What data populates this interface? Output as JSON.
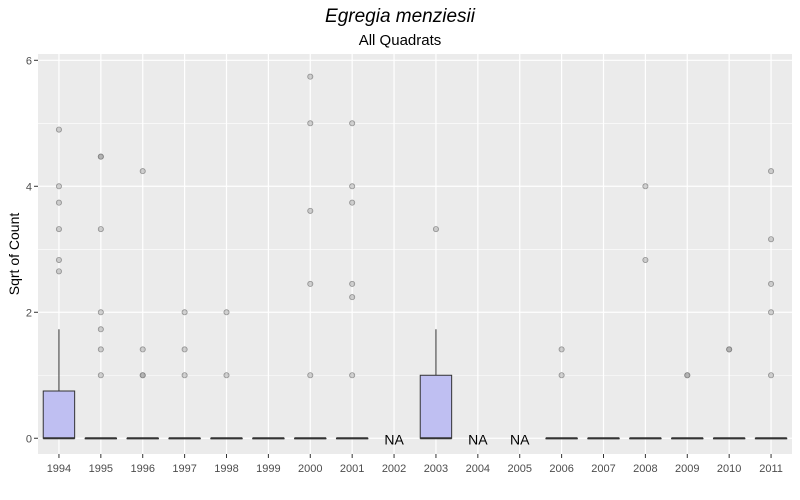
{
  "chart_data": {
    "type": "boxplot",
    "title": "Egregia menziesii",
    "subtitle": "All Quadrats",
    "xlabel": "",
    "ylabel": "Sqrt of Count",
    "ylim": [
      -0.25,
      6.1
    ],
    "yticks": [
      0,
      2,
      4,
      6
    ],
    "grid": true,
    "legend": "none",
    "colors": {
      "panel": "#ebebeb",
      "grid": "#ffffff",
      "box_fill": "#bfbff2",
      "box_line": "#333333",
      "outlier": "#808080"
    },
    "categories": [
      "1994",
      "1995",
      "1996",
      "1997",
      "1998",
      "1999",
      "2000",
      "2001",
      "2002",
      "2003",
      "2004",
      "2005",
      "2006",
      "2007",
      "2008",
      "2009",
      "2010",
      "2011"
    ],
    "na_label": "NA",
    "boxes": [
      {
        "year": "1994",
        "min": 0,
        "q1": 0,
        "median": 0,
        "q3": 0.75,
        "max": 1.73,
        "outliers": [
          2.65,
          2.83,
          3.32,
          3.74,
          4.0,
          4.9
        ]
      },
      {
        "year": "1995",
        "min": 0,
        "q1": 0,
        "median": 0,
        "q3": 0,
        "max": 0,
        "outliers": [
          1.0,
          1.41,
          1.73,
          2.0,
          3.32,
          4.47,
          4.47
        ]
      },
      {
        "year": "1996",
        "min": 0,
        "q1": 0,
        "median": 0,
        "q3": 0,
        "max": 0,
        "outliers": [
          1.0,
          1.0,
          1.41,
          4.24
        ]
      },
      {
        "year": "1997",
        "min": 0,
        "q1": 0,
        "median": 0,
        "q3": 0,
        "max": 0,
        "outliers": [
          1.0,
          1.41,
          2.0
        ]
      },
      {
        "year": "1998",
        "min": 0,
        "q1": 0,
        "median": 0,
        "q3": 0,
        "max": 0,
        "outliers": [
          1.0,
          2.0
        ]
      },
      {
        "year": "1999",
        "min": 0,
        "q1": 0,
        "median": 0,
        "q3": 0,
        "max": 0,
        "outliers": []
      },
      {
        "year": "2000",
        "min": 0,
        "q1": 0,
        "median": 0,
        "q3": 0,
        "max": 0,
        "outliers": [
          1.0,
          2.45,
          3.61,
          5.0,
          5.74
        ]
      },
      {
        "year": "2001",
        "min": 0,
        "q1": 0,
        "median": 0,
        "q3": 0,
        "max": 0,
        "outliers": [
          1.0,
          2.24,
          2.45,
          3.74,
          4.0,
          5.0
        ]
      },
      {
        "year": "2002",
        "na": true
      },
      {
        "year": "2003",
        "min": 0,
        "q1": 0,
        "median": 0,
        "q3": 1.0,
        "max": 1.73,
        "outliers": [
          3.32
        ]
      },
      {
        "year": "2004",
        "na": true
      },
      {
        "year": "2005",
        "na": true
      },
      {
        "year": "2006",
        "min": 0,
        "q1": 0,
        "median": 0,
        "q3": 0,
        "max": 0,
        "outliers": [
          1.0,
          1.41
        ]
      },
      {
        "year": "2007",
        "min": 0,
        "q1": 0,
        "median": 0,
        "q3": 0,
        "max": 0,
        "outliers": []
      },
      {
        "year": "2008",
        "min": 0,
        "q1": 0,
        "median": 0,
        "q3": 0,
        "max": 0,
        "outliers": [
          2.83,
          4.0
        ]
      },
      {
        "year": "2009",
        "min": 0,
        "q1": 0,
        "median": 0,
        "q3": 0,
        "max": 0,
        "outliers": [
          1.0,
          1.0
        ]
      },
      {
        "year": "2010",
        "min": 0,
        "q1": 0,
        "median": 0,
        "q3": 0,
        "max": 0,
        "outliers": [
          1.41,
          1.41
        ]
      },
      {
        "year": "2011",
        "min": 0,
        "q1": 0,
        "median": 0,
        "q3": 0,
        "max": 0,
        "outliers": [
          1.0,
          2.0,
          2.45,
          3.16,
          4.24
        ]
      }
    ]
  }
}
